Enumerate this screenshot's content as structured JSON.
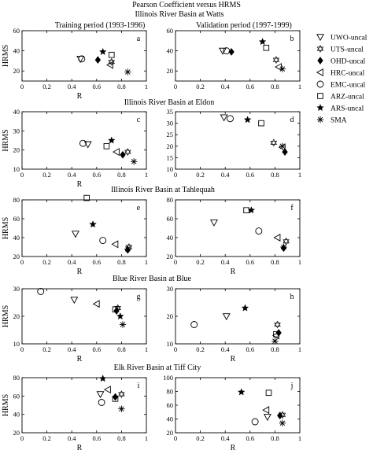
{
  "figure": {
    "title": "Pearson Coefficient versus HRMS",
    "basin_titles": [
      "Illinois River Basin at Watts",
      "Illinois River Basin at Eldon",
      "Illinois River Basin at Tahlequah",
      "Blue River Basin at Blue",
      "Elk River Basin at Tiff City"
    ],
    "period_titles": [
      "Training period (1993-1996)",
      "Validation period (1997-1999)"
    ]
  },
  "legend": [
    {
      "name": "UWO-uncal",
      "marker": "tri-down"
    },
    {
      "name": "UTS-uncal",
      "marker": "hexstar"
    },
    {
      "name": "OHD-uncal",
      "marker": "diamond"
    },
    {
      "name": "HRC-uncal",
      "marker": "tri-left"
    },
    {
      "name": "EMC-uncal",
      "marker": "circle"
    },
    {
      "name": "ARZ-uncal",
      "marker": "square"
    },
    {
      "name": "ARS-uncal",
      "marker": "star"
    },
    {
      "name": "SMA",
      "marker": "asterisk"
    }
  ],
  "chart_data": [
    {
      "panel": "a",
      "type": "scatter",
      "xlabel": "R",
      "ylabel": "HRMS",
      "xlim": [
        0,
        1
      ],
      "ylim": [
        10,
        60
      ],
      "xticks": [
        0,
        0.2,
        0.4,
        0.6,
        0.8,
        1
      ],
      "yticks": [
        20,
        40,
        60
      ],
      "points": [
        {
          "series": "UWO-uncal",
          "x": 0.47,
          "y": 32
        },
        {
          "series": "UTS-uncal",
          "x": 0.72,
          "y": 29
        },
        {
          "series": "OHD-uncal",
          "x": 0.61,
          "y": 31
        },
        {
          "series": "HRC-uncal",
          "x": 0.71,
          "y": 26
        },
        {
          "series": "EMC-uncal",
          "x": 0.48,
          "y": 32
        },
        {
          "series": "ARZ-uncal",
          "x": 0.72,
          "y": 36
        },
        {
          "series": "ARS-uncal",
          "x": 0.65,
          "y": 39
        },
        {
          "series": "SMA",
          "x": 0.85,
          "y": 19
        }
      ]
    },
    {
      "panel": "b",
      "type": "scatter",
      "xlabel": "",
      "ylabel": "",
      "xlim": [
        0,
        1
      ],
      "ylim": [
        10,
        60
      ],
      "xticks": [
        0,
        0.2,
        0.4,
        0.6,
        0.8,
        1
      ],
      "yticks": [
        20,
        40,
        60
      ],
      "points": [
        {
          "series": "UWO-uncal",
          "x": 0.38,
          "y": 40
        },
        {
          "series": "UTS-uncal",
          "x": 0.81,
          "y": 31
        },
        {
          "series": "OHD-uncal",
          "x": 0.45,
          "y": 39
        },
        {
          "series": "HRC-uncal",
          "x": 0.83,
          "y": 24
        },
        {
          "series": "EMC-uncal",
          "x": 0.41,
          "y": 40
        },
        {
          "series": "ARZ-uncal",
          "x": 0.73,
          "y": 43
        },
        {
          "series": "ARS-uncal",
          "x": 0.7,
          "y": 49
        },
        {
          "series": "SMA",
          "x": 0.86,
          "y": 22
        }
      ]
    },
    {
      "panel": "c",
      "type": "scatter",
      "xlabel": "R",
      "ylabel": "HRMS",
      "xlim": [
        0,
        1
      ],
      "ylim": [
        10,
        40
      ],
      "xticks": [
        0,
        0.2,
        0.4,
        0.6,
        0.8,
        1
      ],
      "yticks": [
        10,
        20,
        30,
        40
      ],
      "points": [
        {
          "series": "UWO-uncal",
          "x": 0.53,
          "y": 23
        },
        {
          "series": "UTS-uncal",
          "x": 0.85,
          "y": 19
        },
        {
          "series": "OHD-uncal",
          "x": 0.81,
          "y": 17.5
        },
        {
          "series": "HRC-uncal",
          "x": 0.76,
          "y": 19
        },
        {
          "series": "EMC-uncal",
          "x": 0.49,
          "y": 23.5
        },
        {
          "series": "ARZ-uncal",
          "x": 0.68,
          "y": 22
        },
        {
          "series": "ARS-uncal",
          "x": 0.72,
          "y": 25
        },
        {
          "series": "SMA",
          "x": 0.9,
          "y": 14
        }
      ]
    },
    {
      "panel": "d",
      "type": "scatter",
      "xlabel": "",
      "ylabel": "",
      "xlim": [
        0,
        1
      ],
      "ylim": [
        10,
        35
      ],
      "xticks": [
        0,
        0.2,
        0.4,
        0.6,
        0.8,
        1
      ],
      "yticks": [
        10,
        15,
        20,
        25,
        30,
        35
      ],
      "points": [
        {
          "series": "UWO-uncal",
          "x": 0.39,
          "y": 32.5
        },
        {
          "series": "UTS-uncal",
          "x": 0.79,
          "y": 21.5
        },
        {
          "series": "OHD-uncal",
          "x": 0.88,
          "y": 17.5
        },
        {
          "series": "HRC-uncal",
          "x": 0.86,
          "y": 19.5
        },
        {
          "series": "EMC-uncal",
          "x": 0.44,
          "y": 32
        },
        {
          "series": "ARZ-uncal",
          "x": 0.69,
          "y": 30
        },
        {
          "series": "ARS-uncal",
          "x": 0.58,
          "y": 31.5
        },
        {
          "series": "SMA",
          "x": 0.86,
          "y": 20
        }
      ]
    },
    {
      "panel": "e",
      "type": "scatter",
      "xlabel": "R",
      "ylabel": "HRMS",
      "xlim": [
        0,
        1
      ],
      "ylim": [
        20,
        80
      ],
      "xticks": [
        0,
        0.2,
        0.4,
        0.6,
        0.8,
        1
      ],
      "yticks": [
        20,
        40,
        60,
        80
      ],
      "points": [
        {
          "series": "UWO-uncal",
          "x": 0.43,
          "y": 44
        },
        {
          "series": "UTS-uncal",
          "x": 0.86,
          "y": 30
        },
        {
          "series": "OHD-uncal",
          "x": 0.85,
          "y": 27
        },
        {
          "series": "HRC-uncal",
          "x": 0.75,
          "y": 33
        },
        {
          "series": "EMC-uncal",
          "x": 0.65,
          "y": 37
        },
        {
          "series": "ARZ-uncal",
          "x": 0.52,
          "y": 82
        },
        {
          "series": "ARS-uncal",
          "x": 0.57,
          "y": 54
        },
        {
          "series": "SMA",
          "x": 0.85,
          "y": 28
        }
      ]
    },
    {
      "panel": "f",
      "type": "scatter",
      "xlabel": "R",
      "ylabel": "",
      "xlim": [
        0,
        1
      ],
      "ylim": [
        20,
        80
      ],
      "xticks": [
        0,
        0.2,
        0.4,
        0.6,
        0.8,
        1
      ],
      "yticks": [
        20,
        40,
        60,
        80
      ],
      "points": [
        {
          "series": "UWO-uncal",
          "x": 0.31,
          "y": 56
        },
        {
          "series": "UTS-uncal",
          "x": 0.89,
          "y": 36
        },
        {
          "series": "OHD-uncal",
          "x": 0.87,
          "y": 29
        },
        {
          "series": "HRC-uncal",
          "x": 0.82,
          "y": 40
        },
        {
          "series": "EMC-uncal",
          "x": 0.67,
          "y": 47
        },
        {
          "series": "ARZ-uncal",
          "x": 0.57,
          "y": 69
        },
        {
          "series": "ARS-uncal",
          "x": 0.61,
          "y": 69
        },
        {
          "series": "SMA",
          "x": 0.87,
          "y": 30
        }
      ]
    },
    {
      "panel": "g",
      "type": "scatter",
      "xlabel": "R",
      "ylabel": "HRMS",
      "xlim": [
        0,
        1
      ],
      "ylim": [
        10,
        30
      ],
      "xticks": [
        0,
        0.2,
        0.4,
        0.6,
        0.8,
        1
      ],
      "yticks": [
        10,
        20,
        30
      ],
      "points": [
        {
          "series": "UWO-uncal",
          "x": 0.42,
          "y": 26
        },
        {
          "series": "UTS-uncal",
          "x": 0.77,
          "y": 23
        },
        {
          "series": "OHD-uncal",
          "x": 0.76,
          "y": 22
        },
        {
          "series": "HRC-uncal",
          "x": 0.6,
          "y": 24.5
        },
        {
          "series": "EMC-uncal",
          "x": 0.15,
          "y": 29
        },
        {
          "series": "ARZ-uncal",
          "x": 0.75,
          "y": 22.5
        },
        {
          "series": "ARS-uncal",
          "x": 0.79,
          "y": 20
        },
        {
          "series": "SMA",
          "x": 0.81,
          "y": 17
        }
      ]
    },
    {
      "panel": "h",
      "type": "scatter",
      "xlabel": "R",
      "ylabel": "",
      "xlim": [
        0,
        1
      ],
      "ylim": [
        10,
        30
      ],
      "xticks": [
        0,
        0.2,
        0.4,
        0.6,
        0.8,
        1
      ],
      "yticks": [
        10,
        20,
        30
      ],
      "points": [
        {
          "series": "UWO-uncal",
          "x": 0.41,
          "y": 20
        },
        {
          "series": "UTS-uncal",
          "x": 0.82,
          "y": 17
        },
        {
          "series": "OHD-uncal",
          "x": 0.83,
          "y": 14
        },
        {
          "series": "HRC-uncal",
          "x": 0.81,
          "y": 13
        },
        {
          "series": "EMC-uncal",
          "x": 0.15,
          "y": 17
        },
        {
          "series": "ARZ-uncal",
          "x": 0.81,
          "y": 13.5
        },
        {
          "series": "ARS-uncal",
          "x": 0.56,
          "y": 23
        },
        {
          "series": "SMA",
          "x": 0.8,
          "y": 11
        }
      ]
    },
    {
      "panel": "i",
      "type": "scatter",
      "xlabel": "R",
      "ylabel": "HRMS",
      "xlim": [
        0,
        1
      ],
      "ylim": [
        20,
        80
      ],
      "xticks": [
        0,
        0.2,
        0.4,
        0.6,
        0.8,
        1
      ],
      "yticks": [
        20,
        40,
        60,
        80
      ],
      "points": [
        {
          "series": "UWO-uncal",
          "x": 0.63,
          "y": 62
        },
        {
          "series": "UTS-uncal",
          "x": 0.8,
          "y": 62
        },
        {
          "series": "OHD-uncal",
          "x": 0.75,
          "y": 59
        },
        {
          "series": "HRC-uncal",
          "x": 0.69,
          "y": 67
        },
        {
          "series": "EMC-uncal",
          "x": 0.64,
          "y": 53
        },
        {
          "series": "ARZ-uncal",
          "x": 0.75,
          "y": 57
        },
        {
          "series": "ARS-uncal",
          "x": 0.65,
          "y": 79
        },
        {
          "series": "SMA",
          "x": 0.8,
          "y": 46
        }
      ]
    },
    {
      "panel": "j",
      "type": "scatter",
      "xlabel": "R",
      "ylabel": "",
      "xlim": [
        0,
        1
      ],
      "ylim": [
        20,
        100
      ],
      "xticks": [
        0,
        0.2,
        0.4,
        0.6,
        0.8,
        1
      ],
      "yticks": [
        20,
        40,
        60,
        80,
        100
      ],
      "points": [
        {
          "series": "UWO-uncal",
          "x": 0.74,
          "y": 43
        },
        {
          "series": "UTS-uncal",
          "x": 0.86,
          "y": 46
        },
        {
          "series": "OHD-uncal",
          "x": 0.84,
          "y": 45
        },
        {
          "series": "HRC-uncal",
          "x": 0.73,
          "y": 53
        },
        {
          "series": "EMC-uncal",
          "x": 0.64,
          "y": 36
        },
        {
          "series": "ARZ-uncal",
          "x": 0.75,
          "y": 78
        },
        {
          "series": "ARS-uncal",
          "x": 0.53,
          "y": 79
        },
        {
          "series": "SMA",
          "x": 0.86,
          "y": 34
        }
      ]
    }
  ]
}
